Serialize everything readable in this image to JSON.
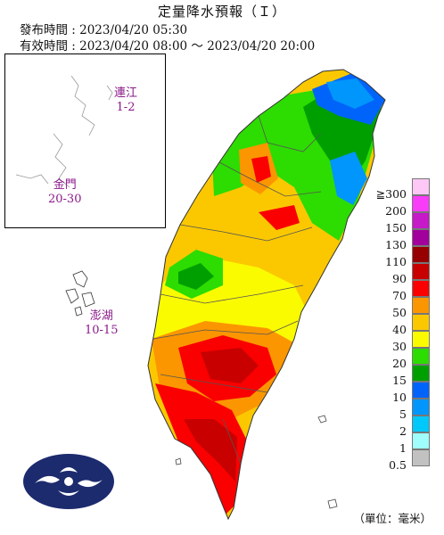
{
  "title": "定量降水預報（Ｉ）",
  "issued": "發布時間 : 2023/04/20 05:30",
  "valid": "有效時間 : 2023/04/20 08:00 ～ 2023/04/20 20:00",
  "islands": [
    {
      "name": "連江",
      "range": "1-2"
    },
    {
      "name": "金門",
      "range": "20-30"
    },
    {
      "name": "澎湖",
      "range": "10-15"
    }
  ],
  "legend": {
    "items": [
      {
        "label": "≧300",
        "color": "#fdc8f5"
      },
      {
        "label": "200",
        "color": "#f83cf8"
      },
      {
        "label": "150",
        "color": "#c619c8"
      },
      {
        "label": "130",
        "color": "#a1009c"
      },
      {
        "label": "110",
        "color": "#960000"
      },
      {
        "label": "90",
        "color": "#c80000"
      },
      {
        "label": "70",
        "color": "#fa0000"
      },
      {
        "label": "50",
        "color": "#fb9600"
      },
      {
        "label": "40",
        "color": "#fbc800"
      },
      {
        "label": "30",
        "color": "#fbfb00"
      },
      {
        "label": "20",
        "color": "#2ddc00"
      },
      {
        "label": "15",
        "color": "#009f00"
      },
      {
        "label": "10",
        "color": "#0064fb"
      },
      {
        "label": "5",
        "color": "#0096fb"
      },
      {
        "label": "2",
        "color": "#00c8fb"
      },
      {
        "label": "1",
        "color": "#9ffefb"
      },
      {
        "label": "0.5",
        "color": "#c1c1c1"
      }
    ]
  },
  "unit": "（單位：毫米）"
}
